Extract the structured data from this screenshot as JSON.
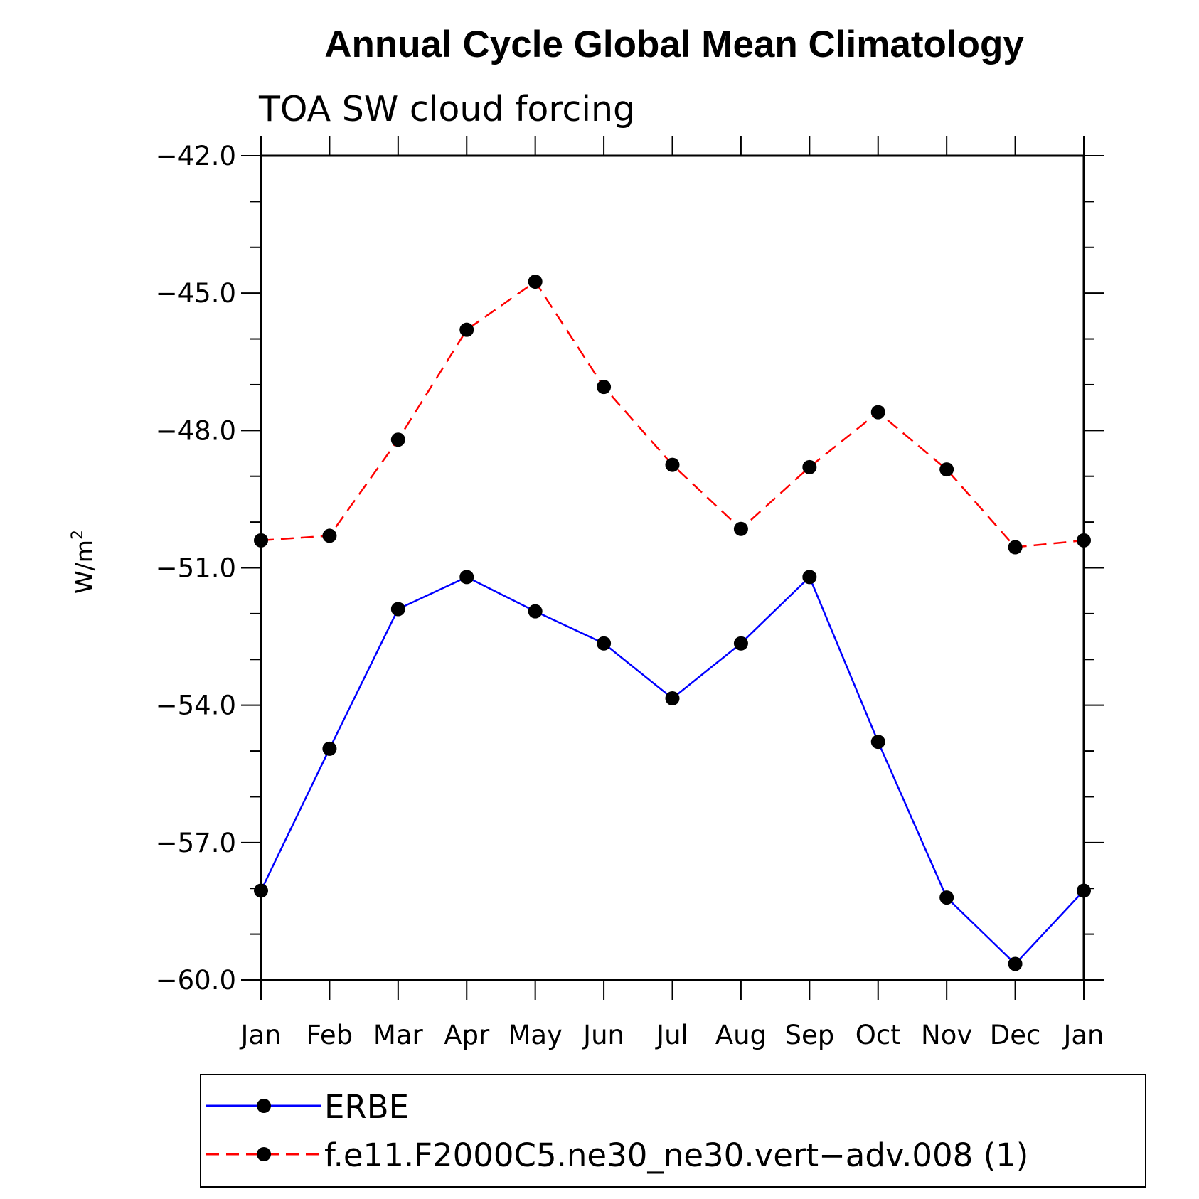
{
  "chart_data": {
    "type": "line",
    "title": "Annual Cycle Global Mean Climatology",
    "subtitle": "TOA SW cloud forcing",
    "ylabel": "W/m",
    "ylabel_sup": "2",
    "xlabel": "",
    "categories": [
      "Jan",
      "Feb",
      "Mar",
      "Apr",
      "May",
      "Jun",
      "Jul",
      "Aug",
      "Sep",
      "Oct",
      "Nov",
      "Dec",
      "Jan"
    ],
    "ylim": [
      -60.0,
      -42.0
    ],
    "yticks": [
      -42.0,
      -45.0,
      -48.0,
      -51.0,
      -54.0,
      -57.0,
      -60.0
    ],
    "ytick_labels": [
      "−42.0",
      "−45.0",
      "−48.0",
      "−51.0",
      "−54.0",
      "−57.0",
      "−60.0"
    ],
    "minor_tick_step": 1.0,
    "grid": false,
    "legend_position": "bottom",
    "series": [
      {
        "name": "ERBE",
        "color": "#0000ff",
        "dash": "solid",
        "marker": "filled-circle",
        "values": [
          -58.05,
          -54.95,
          -51.9,
          -51.2,
          -51.95,
          -52.65,
          -53.85,
          -52.65,
          -51.2,
          -54.8,
          -58.2,
          -59.65,
          -58.05
        ]
      },
      {
        "name": "f.e11.F2000C5.ne30_ne30.vert−adv.008 (1)",
        "color": "#ff0000",
        "dash": "dashed",
        "marker": "filled-circle",
        "values": [
          -50.4,
          -50.3,
          -48.2,
          -45.8,
          -44.75,
          -47.05,
          -48.75,
          -50.15,
          -48.8,
          -47.6,
          -48.85,
          -50.55,
          -50.4
        ]
      }
    ]
  }
}
